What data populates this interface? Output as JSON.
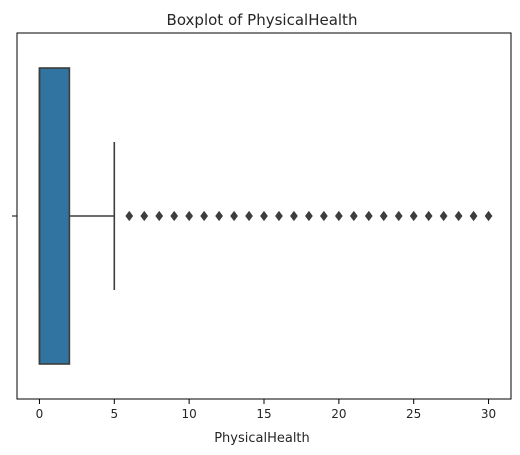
{
  "chart_data": {
    "type": "boxplot",
    "title": "Boxplot of PhysicalHealth",
    "xlabel": "PhysicalHealth",
    "ylabel": "",
    "orientation": "horizontal",
    "xlim": [
      -1.5,
      31.5
    ],
    "xticks": [
      0,
      5,
      10,
      15,
      20,
      25,
      30
    ],
    "grid": false,
    "box": {
      "q1": 0,
      "median": 0,
      "q3": 2,
      "whisker_low": 0,
      "whisker_high": 5,
      "fliers": [
        6,
        7,
        8,
        9,
        10,
        11,
        12,
        13,
        14,
        15,
        16,
        17,
        18,
        19,
        20,
        21,
        22,
        23,
        24,
        25,
        26,
        27,
        28,
        29,
        30
      ]
    },
    "colors": {
      "box_fill": "#3274a1",
      "line": "#3d3d3d",
      "flier": "#3d3d3d"
    }
  }
}
